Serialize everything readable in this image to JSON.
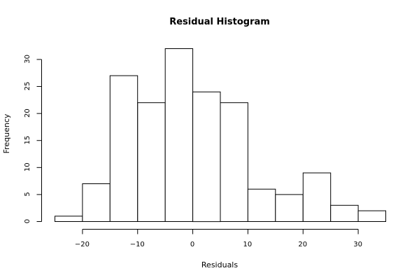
{
  "chart_data": {
    "type": "bar",
    "title": "Residual Histogram",
    "xlabel": "Residuals",
    "ylabel": "Frequency",
    "bins": [
      {
        "from": -25,
        "to": -20,
        "count": 1
      },
      {
        "from": -20,
        "to": -15,
        "count": 7
      },
      {
        "from": -15,
        "to": -10,
        "count": 27
      },
      {
        "from": -10,
        "to": -5,
        "count": 22
      },
      {
        "from": -5,
        "to": 0,
        "count": 32
      },
      {
        "from": 0,
        "to": 5,
        "count": 24
      },
      {
        "from": 5,
        "to": 10,
        "count": 22
      },
      {
        "from": 10,
        "to": 15,
        "count": 6
      },
      {
        "from": 15,
        "to": 20,
        "count": 5
      },
      {
        "from": 20,
        "to": 25,
        "count": 9
      },
      {
        "from": 25,
        "to": 30,
        "count": 3
      },
      {
        "from": 30,
        "to": 35,
        "count": 2
      }
    ],
    "xticks": [
      -20,
      -10,
      0,
      10,
      20,
      30
    ],
    "yticks": [
      0,
      5,
      10,
      15,
      20,
      25,
      30
    ],
    "xlim": [
      -25,
      35
    ],
    "ylim": [
      0,
      32
    ],
    "grid": false,
    "colors": {
      "bar_fill": "#ffffff",
      "bar_stroke": "#000000"
    }
  }
}
